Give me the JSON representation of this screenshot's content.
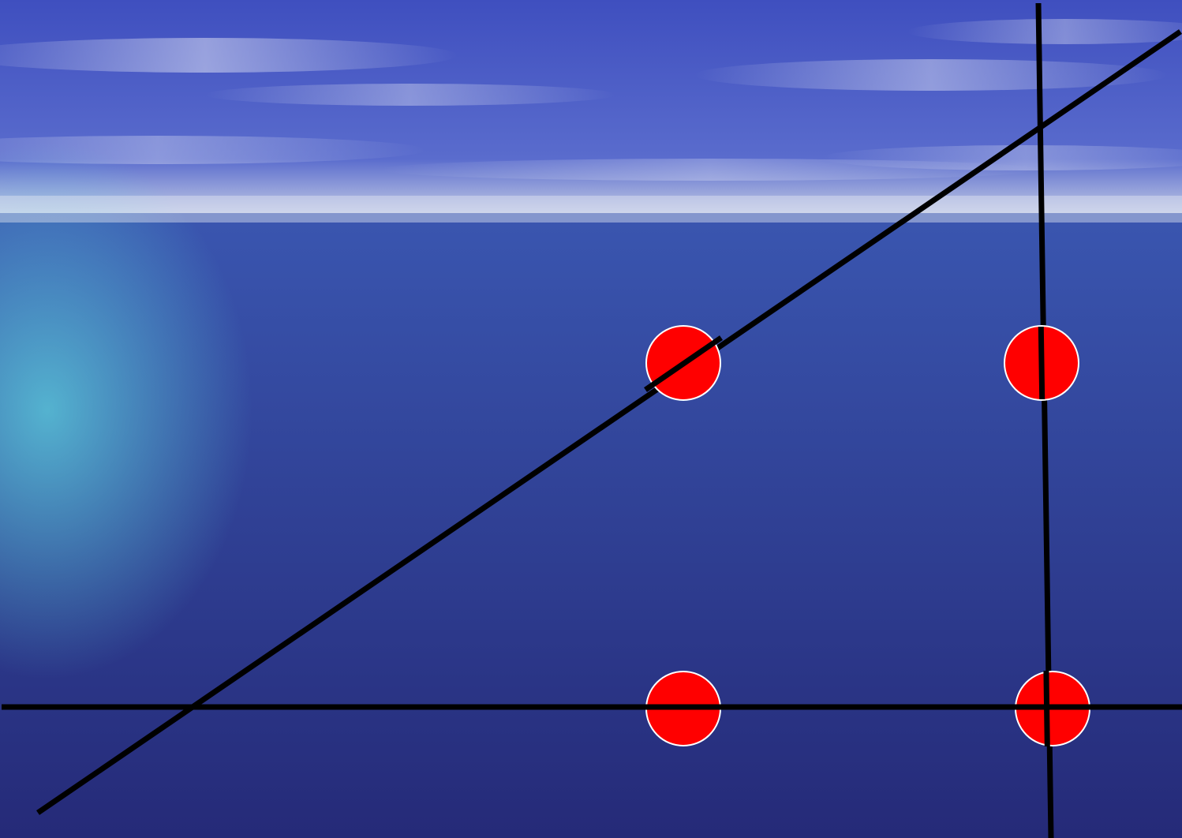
{
  "diagram": {
    "colors": {
      "line": "#000000",
      "dot_fill": "#ff0000",
      "dot_stroke": "#ffffff",
      "sky_top": "#3f4fbf",
      "sky_horizon": "#cfd6e8",
      "sea_top": "#3a56b0",
      "sea_bottom": "#252a78",
      "glow": "#5fd6e0"
    },
    "lines": [
      {
        "name": "horizontal-line"
      },
      {
        "name": "vertical-line"
      },
      {
        "name": "diagonal-line"
      }
    ],
    "dots": [
      {
        "name": "red-dot-diagonal"
      },
      {
        "name": "red-dot-vertical"
      },
      {
        "name": "red-dot-horizontal"
      },
      {
        "name": "red-dot-corner"
      }
    ]
  }
}
